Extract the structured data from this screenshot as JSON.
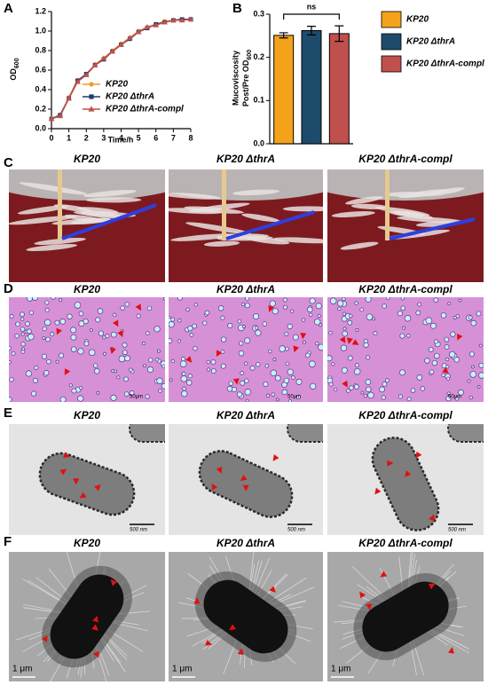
{
  "panel_labels": [
    "A",
    "B",
    "C",
    "D",
    "E",
    "F"
  ],
  "chart_data": [
    {
      "type": "line",
      "xlabel": "Time/h",
      "ylabel": {
        "main": "OD",
        "sub": "600"
      },
      "x": [
        0,
        0.5,
        1,
        1.5,
        2,
        2.5,
        3,
        3.5,
        4,
        4.5,
        5,
        5.5,
        6,
        6.5,
        7,
        7.5,
        8
      ],
      "xlim": [
        0,
        8
      ],
      "xticks": [
        0,
        1,
        2,
        3,
        4,
        5,
        6,
        7,
        8
      ],
      "ylim": [
        0,
        1.2
      ],
      "yticks": [
        {
          "value": 0,
          "label": "0.0"
        },
        0.2,
        0.4,
        0.6,
        0.8,
        {
          "value": 1,
          "label": "1.0"
        },
        1.2
      ],
      "series": [
        {
          "name": "KP20",
          "color": "#f39a2b",
          "marker": "circle",
          "values": [
            0.1,
            0.14,
            0.32,
            0.5,
            0.55,
            0.66,
            0.72,
            0.8,
            0.87,
            0.93,
            1.0,
            1.04,
            1.07,
            1.1,
            1.11,
            1.12,
            1.12
          ]
        },
        {
          "name": "KP20 ΔthrA",
          "color": "#1f3b6e",
          "marker": "square",
          "values": [
            0.1,
            0.14,
            0.31,
            0.49,
            0.56,
            0.65,
            0.71,
            0.79,
            0.86,
            0.92,
            0.99,
            1.03,
            1.07,
            1.09,
            1.11,
            1.12,
            1.12
          ]
        },
        {
          "name": "KP20 ΔthrA-compl",
          "color": "#c0504d",
          "marker": "triangle",
          "values": [
            0.1,
            0.13,
            0.31,
            0.48,
            0.55,
            0.65,
            0.72,
            0.79,
            0.86,
            0.93,
            0.99,
            1.04,
            1.06,
            1.09,
            1.11,
            1.11,
            1.12
          ]
        }
      ]
    },
    {
      "type": "bar",
      "ylabel": {
        "line1": "Mucoviscosity",
        "line2": "Post/Pre OD",
        "sub": "600"
      },
      "annotation": "ns",
      "categories": [
        "KP20",
        "KP20 ΔthrA",
        "KP20 ΔthrA-compl"
      ],
      "colors": [
        "#f5a21b",
        "#1d4b6b",
        "#c0504d"
      ],
      "values": [
        0.251,
        0.262,
        0.255
      ],
      "errors": [
        0.006,
        0.01,
        0.018
      ],
      "ylim": [
        0,
        0.3
      ],
      "yticks": [
        {
          "value": 0,
          "label": "0.0"
        },
        0.1,
        0.2,
        0.3
      ]
    }
  ],
  "rows": [
    {
      "panels": [
        {
          "title": "KP20"
        },
        {
          "title": "KP20 ΔthrA"
        },
        {
          "title": "KP20 ΔthrA-compl"
        }
      ]
    },
    {
      "panels": [
        {
          "title": "KP20",
          "scale": "50μm"
        },
        {
          "title": "KP20 ΔthrA",
          "scale": "50μm"
        },
        {
          "title": "KP20 ΔthrA-compl",
          "scale": "50μm"
        }
      ]
    },
    {
      "panels": [
        {
          "title": "KP20",
          "scale": "500 nm"
        },
        {
          "title": "KP20 ΔthrA",
          "scale": "500 nm"
        },
        {
          "title": "KP20 ΔthrA-compl",
          "scale": "500 nm"
        }
      ]
    },
    {
      "panels": [
        {
          "title": "KP20",
          "scale": "1 μm"
        },
        {
          "title": "KP20 ΔthrA",
          "scale": "1 μm"
        },
        {
          "title": "KP20 ΔthrA-compl",
          "scale": "1 μm"
        }
      ]
    }
  ]
}
